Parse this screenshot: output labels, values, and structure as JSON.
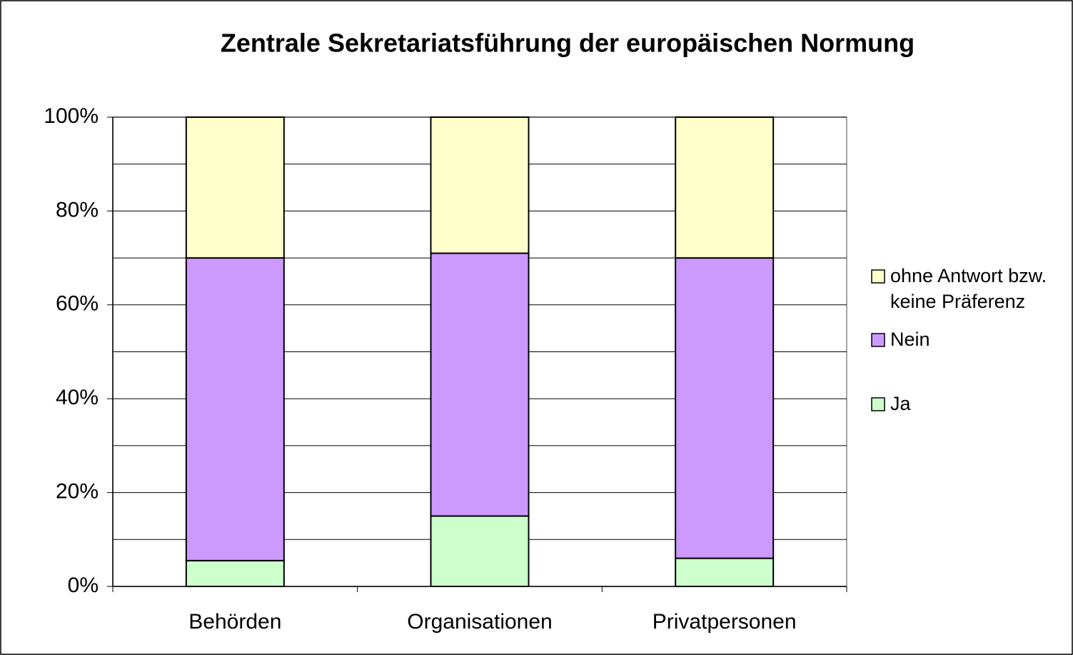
{
  "chart_data": {
    "type": "stacked_bar",
    "title": "Zentrale Sekretariatsführung der europäischen Normung",
    "categories": [
      "Behörden",
      "Organisationen",
      "Privatpersonen"
    ],
    "series": [
      {
        "name": "Ja",
        "color": "#ccffcc",
        "values": [
          5.5,
          15,
          6
        ]
      },
      {
        "name": "Nein",
        "color": "#cc99ff",
        "values": [
          64.5,
          56,
          64
        ]
      },
      {
        "name": "ohne Antwort bzw. keine Präferenz",
        "color": "#ffffcc",
        "values": [
          30,
          29,
          30
        ]
      }
    ],
    "ylim": [
      0,
      100
    ],
    "yticks": [
      {
        "value": 0,
        "label": "0%"
      },
      {
        "value": 20,
        "label": "20%"
      },
      {
        "value": 40,
        "label": "40%"
      },
      {
        "value": 60,
        "label": "60%"
      },
      {
        "value": 80,
        "label": "80%"
      },
      {
        "value": 100,
        "label": "100%"
      }
    ],
    "ygrid": [
      10,
      20,
      30,
      40,
      50,
      60,
      70,
      80,
      90,
      100
    ],
    "grid": true,
    "legend": "right"
  }
}
